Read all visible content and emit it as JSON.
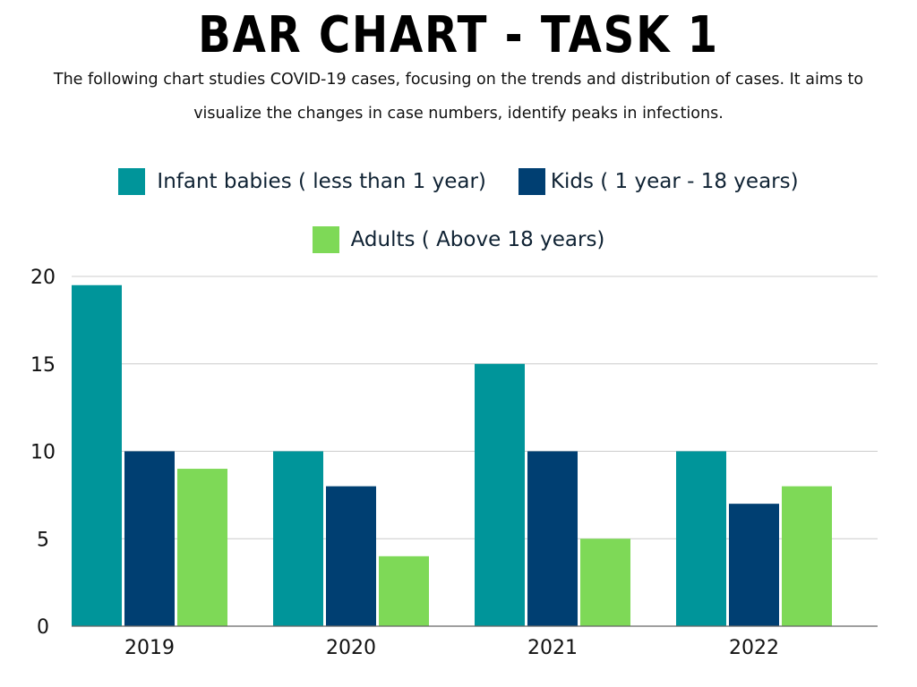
{
  "title": "BAR CHART - TASK 1",
  "subtitle": "The following chart studies COVID-19 cases, focusing on the trends and distribution of cases. It aims to visualize the changes in case numbers, identify peaks in infections.",
  "chart_data": {
    "type": "bar",
    "title": "BAR CHART - TASK 1",
    "xlabel": "",
    "ylabel": "",
    "categories": [
      "2019",
      "2020",
      "2021",
      "2022"
    ],
    "ylim": [
      0,
      20
    ],
    "yticks": [
      0,
      5,
      10,
      15,
      20
    ],
    "grid": true,
    "legend_position": "top-center",
    "series": [
      {
        "name": "Infant babies ( less than 1 year)",
        "color": "#00959a",
        "values": [
          19.5,
          10,
          15,
          10
        ]
      },
      {
        "name": "Kids ( 1 year - 18 years)",
        "color": "#003f72",
        "values": [
          10,
          8,
          10,
          7
        ]
      },
      {
        "name": "Adults ( Above 18 years)",
        "color": "#7ed957",
        "values": [
          9,
          4,
          5,
          8
        ]
      }
    ]
  }
}
